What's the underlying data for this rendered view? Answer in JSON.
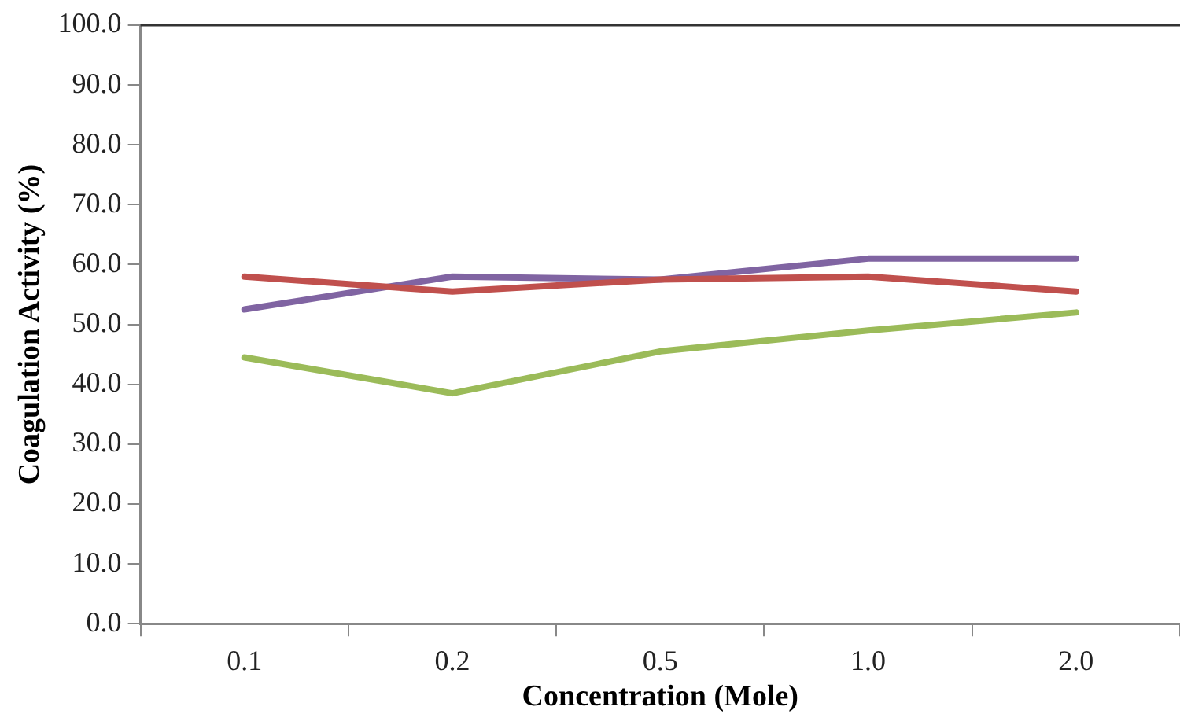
{
  "chart_data": {
    "type": "line",
    "xlabel": "Concentration (Mole)",
    "ylabel": "Coagulation Activity (%)",
    "categories": [
      "0.1",
      "0.2",
      "0.5",
      "1.0",
      "2.0"
    ],
    "series": [
      {
        "color": "#c0504d",
        "values": [
          58,
          55.5,
          57.5,
          58,
          55.5
        ]
      },
      {
        "color": "#8064a2",
        "values": [
          52.5,
          58,
          57.5,
          61,
          61
        ]
      },
      {
        "color": "#9bbb59",
        "values": [
          44.5,
          38.5,
          45.5,
          49,
          52
        ]
      }
    ],
    "ylim": [
      0,
      100
    ],
    "yticks": [
      {
        "value": 0,
        "label": "0.0"
      },
      {
        "value": 10,
        "label": "10.0"
      },
      {
        "value": 20,
        "label": "20.0"
      },
      {
        "value": 30,
        "label": "30.0"
      },
      {
        "value": 40,
        "label": "40.0"
      },
      {
        "value": 50,
        "label": "50.0"
      },
      {
        "value": 60,
        "label": "60.0"
      },
      {
        "value": 70,
        "label": "70.0"
      },
      {
        "value": 80,
        "label": "80.0"
      },
      {
        "value": 90,
        "label": "90.0"
      },
      {
        "value": 100,
        "label": "100.0"
      }
    ],
    "grid": false,
    "legend": false,
    "marker": "none",
    "line_style": "solid"
  }
}
